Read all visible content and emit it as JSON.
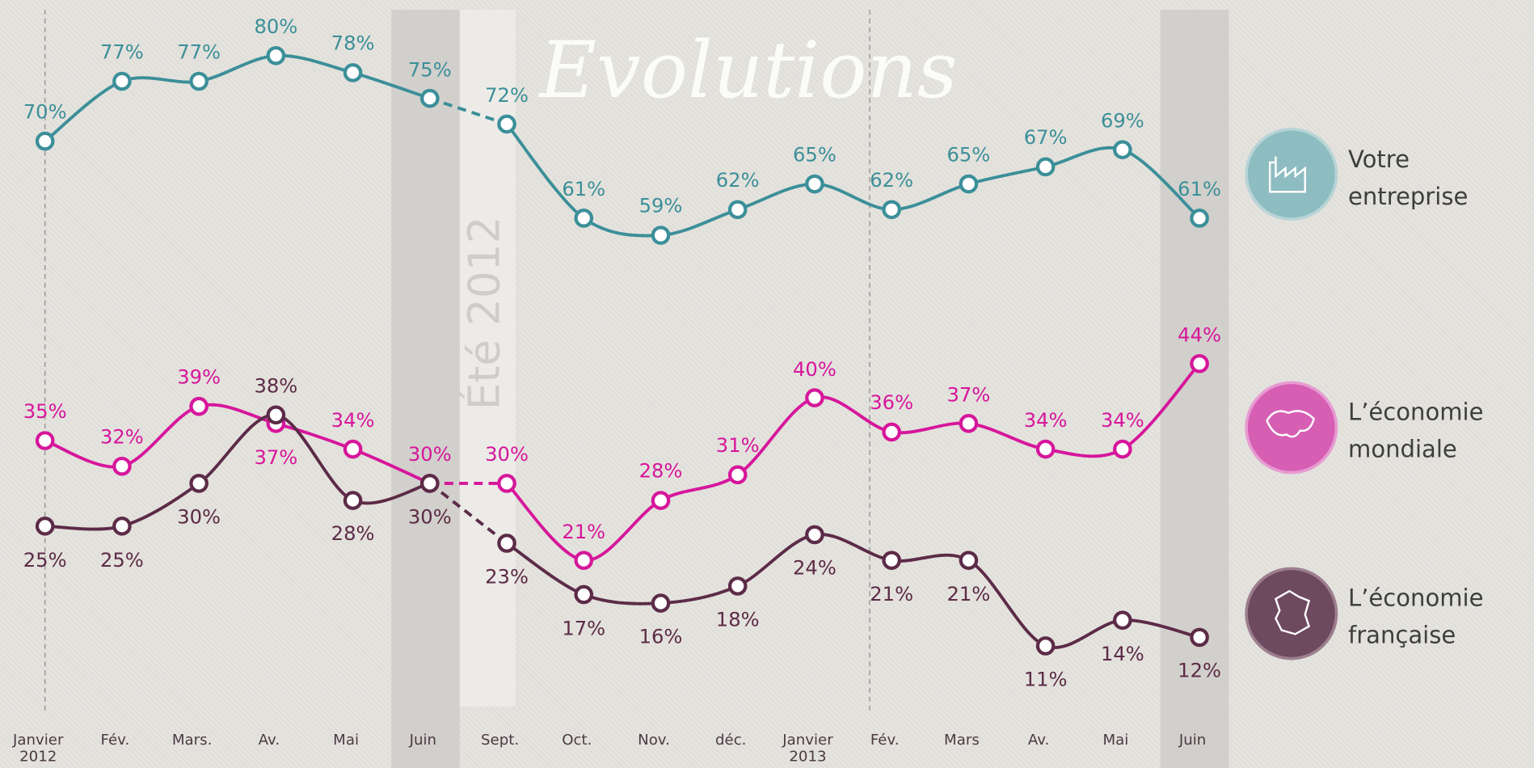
{
  "chart_data": {
    "type": "line",
    "title": "Evolutions",
    "annotation": "Été 2012",
    "categories": [
      "Janvier 2012",
      "Fév.",
      "Mars.",
      "Av.",
      "Mai",
      "Juin",
      "Sept.",
      "Oct.",
      "Nov.",
      "déc.",
      "Janvier 2013",
      "Fév.",
      "Mars",
      "Av.",
      "Mai",
      "Juin"
    ],
    "dashed_after": 5,
    "ylim": [
      3,
      86.5
    ],
    "series": [
      {
        "name": "Votre entreprise",
        "color": "#3b8f99",
        "values": [
          70,
          77,
          77,
          80,
          78,
          75,
          72,
          61,
          59,
          62,
          65,
          62,
          65,
          67,
          69,
          61
        ],
        "value_labels": [
          "70%",
          "77%",
          "77%",
          "80%",
          "78%",
          "75%",
          "72%",
          "61%",
          "59%",
          "62%",
          "65%",
          "62%",
          "65%",
          "67%",
          "69%",
          "61%"
        ]
      },
      {
        "name": "L’économie mondiale",
        "color": "#d6169b",
        "values": [
          35,
          32,
          39,
          37,
          34,
          30,
          30,
          21,
          28,
          31,
          40,
          36,
          37,
          34,
          34,
          44
        ],
        "value_labels": [
          "35%",
          "32%",
          "39%",
          "37%",
          "34%",
          "30%",
          "30%",
          "21%",
          "28%",
          "31%",
          "40%",
          "36%",
          "37%",
          "34%",
          "34%",
          "44%"
        ]
      },
      {
        "name": "L’économie française",
        "color": "#5c2b47",
        "values": [
          25,
          25,
          30,
          38,
          28,
          30,
          23,
          17,
          16,
          18,
          24,
          21,
          21,
          11,
          14,
          12
        ],
        "value_labels": [
          "25%",
          "25%",
          "30%",
          "38%",
          "28%",
          "30%",
          "23%",
          "17%",
          "16%",
          "18%",
          "24%",
          "21%",
          "21%",
          "11%",
          "14%",
          "12%"
        ]
      }
    ]
  }
}
